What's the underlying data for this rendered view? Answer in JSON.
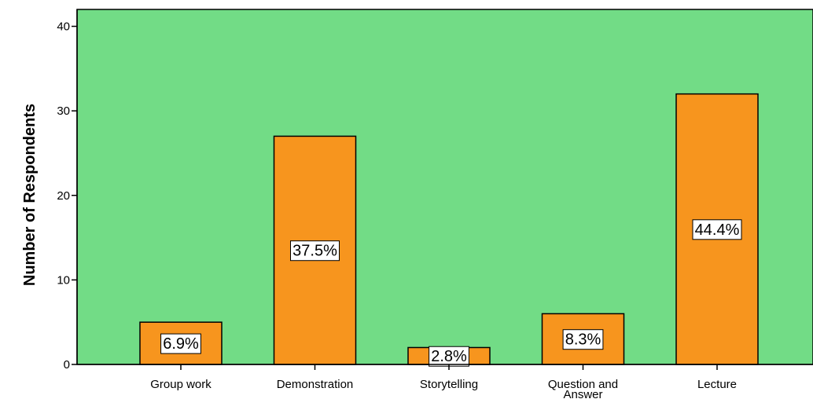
{
  "chart_data": {
    "type": "bar",
    "title": "",
    "xlabel": "",
    "ylabel": "Number of Respondents",
    "ylim": [
      0,
      42
    ],
    "yticks": [
      0,
      10,
      20,
      30,
      40
    ],
    "grid": false,
    "legend": "none",
    "categories": [
      [
        "Group work"
      ],
      [
        "Demonstration"
      ],
      [
        "Storytelling"
      ],
      [
        "Question and",
        "Answer"
      ],
      [
        "Lecture"
      ]
    ],
    "values": [
      5,
      27,
      2,
      6,
      32
    ],
    "data_labels": [
      "6.9%",
      "37.5%",
      "2.8%",
      "8.3%",
      "44.4%"
    ],
    "colors": {
      "plot_background": "#72dc86",
      "bar_fill": "#f7951e",
      "bar_stroke": "#000000",
      "label_background": "#ffffff"
    }
  }
}
